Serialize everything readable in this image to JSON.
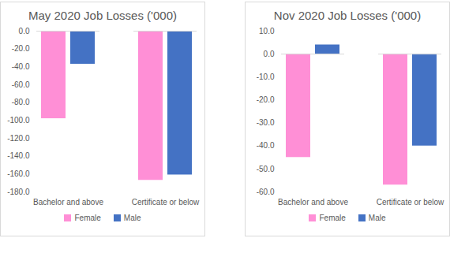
{
  "chart_data": [
    {
      "type": "bar",
      "title": "May 2020 Job Losses ('000)",
      "categories": [
        "Bachelor and above",
        "Certificate or below"
      ],
      "series": [
        {
          "name": "Female",
          "color": "#ff8fd6",
          "values": [
            -98,
            -167
          ]
        },
        {
          "name": "Male",
          "color": "#4472c4",
          "values": [
            -37,
            -161
          ]
        }
      ],
      "ylim": [
        -180,
        0
      ],
      "yticks": [
        {
          "value": 0,
          "label": "0.0"
        },
        {
          "value": -20,
          "label": "-20.0"
        },
        {
          "value": -40,
          "label": "-40.0"
        },
        {
          "value": -60,
          "label": "-60.0"
        },
        {
          "value": -80,
          "label": "-80.0"
        },
        {
          "value": -100,
          "label": "-100.0"
        },
        {
          "value": -120,
          "label": "-120.0"
        },
        {
          "value": -140,
          "label": "-140.0"
        },
        {
          "value": -160,
          "label": "-160.0"
        },
        {
          "value": -180,
          "label": "-180.0"
        }
      ],
      "grid": false,
      "legend": "bottom"
    },
    {
      "type": "bar",
      "title": "Nov 2020 Job Losses ('000)",
      "categories": [
        "Bachelor and above",
        "Certificate or below"
      ],
      "series": [
        {
          "name": "Female",
          "color": "#ff8fd6",
          "values": [
            -45,
            -57
          ]
        },
        {
          "name": "Male",
          "color": "#4472c4",
          "values": [
            4,
            -40
          ]
        }
      ],
      "ylim": [
        -60,
        10
      ],
      "yticks": [
        {
          "value": 10,
          "label": "10.0"
        },
        {
          "value": 0,
          "label": "0.0"
        },
        {
          "value": -10,
          "label": "-10.0"
        },
        {
          "value": -20,
          "label": "-20.0"
        },
        {
          "value": -30,
          "label": "-30.0"
        },
        {
          "value": -40,
          "label": "-40.0"
        },
        {
          "value": -50,
          "label": "-50.0"
        },
        {
          "value": -60,
          "label": "-60.0"
        }
      ],
      "grid": false,
      "legend": "bottom"
    }
  ]
}
